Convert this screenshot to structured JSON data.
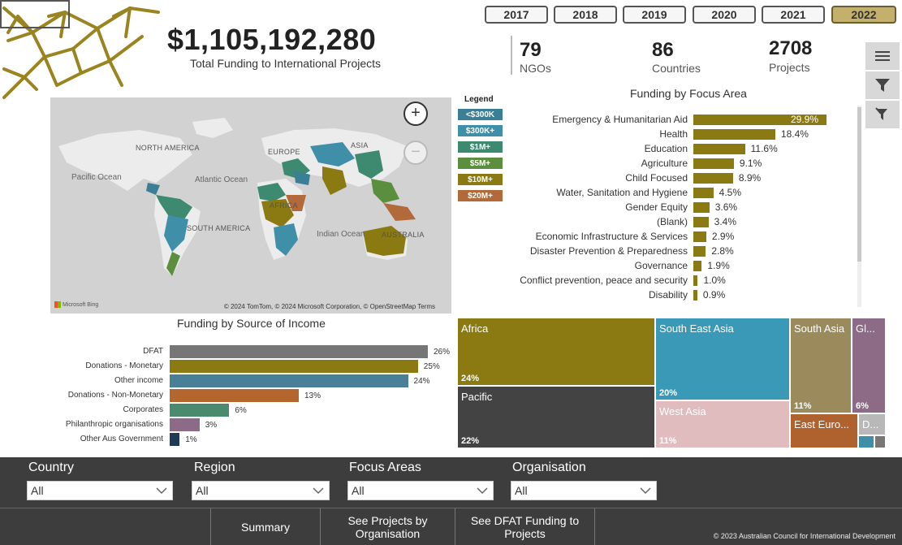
{
  "header": {
    "total_amount": "$1,105,192,280",
    "total_label": "Total Funding to International Projects"
  },
  "years": [
    "2017",
    "2018",
    "2019",
    "2020",
    "2021",
    "2022"
  ],
  "selected_year": "2022",
  "kpis": [
    {
      "value": "79",
      "label": "NGOs"
    },
    {
      "value": "86",
      "label": "Countries"
    },
    {
      "value": "2708",
      "label": "Projects"
    }
  ],
  "toolbar": {
    "icons": [
      "menu-icon",
      "filter-icon",
      "filter-clear-icon"
    ]
  },
  "map": {
    "labels": {
      "north_america": "NORTH AMERICA",
      "europe": "EUROPE",
      "asia": "ASIA",
      "africa": "AFRICA",
      "south_america": "SOUTH AMERICA",
      "australia": "AUSTRALIA",
      "pacific_ocean": "Pacific Ocean",
      "atlantic_ocean": "Atlantic Ocean",
      "indian_ocean": "Indian Ocean"
    },
    "zoom_in": "+",
    "zoom_out": "−",
    "bing": "Microsoft Bing",
    "attribution": "© 2024 TomTom, © 2024 Microsoft Corporation, © OpenStreetMap  Terms"
  },
  "legend": {
    "title": "Legend",
    "items": [
      {
        "label": "<$300K",
        "color": "#3a7f96"
      },
      {
        "label": "$300K+",
        "color": "#3f8fa8"
      },
      {
        "label": "$1M+",
        "color": "#3d8a70"
      },
      {
        "label": "$5M+",
        "color": "#5b8f3e"
      },
      {
        "label": "$10M+",
        "color": "#8b7a11"
      },
      {
        "label": "$20M+",
        "color": "#b26a3a"
      }
    ]
  },
  "focus_area": {
    "title": "Funding by Focus Area",
    "items": [
      {
        "label": "Emergency & Humanitarian Aid",
        "value": 29.9,
        "display": "29.9%"
      },
      {
        "label": "Health",
        "value": 18.4,
        "display": "18.4%"
      },
      {
        "label": "Education",
        "value": 11.6,
        "display": "11.6%"
      },
      {
        "label": "Agriculture",
        "value": 9.1,
        "display": "9.1%"
      },
      {
        "label": "Child Focused",
        "value": 8.9,
        "display": "8.9%"
      },
      {
        "label": "Water, Sanitation and Hygiene",
        "value": 4.5,
        "display": "4.5%"
      },
      {
        "label": "Gender Equity",
        "value": 3.6,
        "display": "3.6%"
      },
      {
        "label": "(Blank)",
        "value": 3.4,
        "display": "3.4%"
      },
      {
        "label": "Economic Infrastructure & Services",
        "value": 2.9,
        "display": "2.9%"
      },
      {
        "label": "Disaster Prevention & Preparedness",
        "value": 2.8,
        "display": "2.8%"
      },
      {
        "label": "Governance",
        "value": 1.9,
        "display": "1.9%"
      },
      {
        "label": "Conflict prevention, peace and security",
        "value": 1.0,
        "display": "1.0%"
      },
      {
        "label": "Disability",
        "value": 0.9,
        "display": "0.9%"
      }
    ]
  },
  "source_income": {
    "title": "Funding by Source of Income",
    "items": [
      {
        "label": "DFAT",
        "value": 26,
        "display": "26%",
        "color": "#767676"
      },
      {
        "label": "Donations - Monetary",
        "value": 25,
        "display": "25%",
        "color": "#8b7a11"
      },
      {
        "label": "Other income",
        "value": 24,
        "display": "24%",
        "color": "#4a7f98"
      },
      {
        "label": "Donations - Non-Monetary",
        "value": 13,
        "display": "13%",
        "color": "#b5662f"
      },
      {
        "label": "Corporates",
        "value": 6,
        "display": "6%",
        "color": "#4a8a6e"
      },
      {
        "label": "Philanthropic organisations",
        "value": 3,
        "display": "3%",
        "color": "#8d6a86"
      },
      {
        "label": "Other Aus Government",
        "value": 1,
        "display": "1%",
        "color": "#1e3a56"
      }
    ]
  },
  "regions": [
    {
      "name": "Africa",
      "pct": "24%",
      "color": "#8b7a11"
    },
    {
      "name": "Pacific",
      "pct": "22%",
      "color": "#434343"
    },
    {
      "name": "South East Asia",
      "pct": "20%",
      "color": "#3b99b8"
    },
    {
      "name": "West Asia",
      "pct": "11%",
      "color": "#e0bcbe"
    },
    {
      "name": "South Asia",
      "pct": "11%",
      "color": "#9b8b5c"
    },
    {
      "name": "East Euro...",
      "pct": "",
      "color": "#b0622e"
    },
    {
      "name": "Gl...",
      "pct": "6%",
      "color": "#8d6a86"
    },
    {
      "name": "D...",
      "pct": "",
      "color": "#b8b8b8"
    }
  ],
  "filters": [
    {
      "label": "Country",
      "value": "All"
    },
    {
      "label": "Region",
      "value": "All"
    },
    {
      "label": "Focus Areas",
      "value": "All"
    },
    {
      "label": "Organisation",
      "value": "All"
    }
  ],
  "nav": {
    "summary": "Summary",
    "projects_by_org": "See Projects by Organisation",
    "dfat_funding": "See DFAT Funding to Projects"
  },
  "copyright": "© 2023 Australian Council for International Development"
}
